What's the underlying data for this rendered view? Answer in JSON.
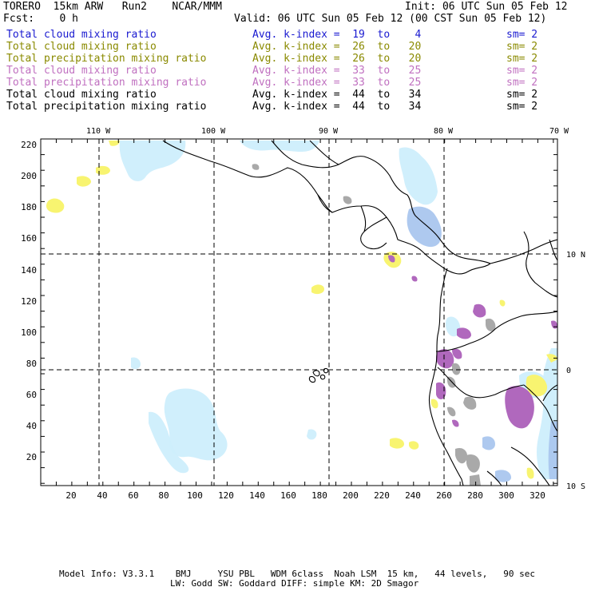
{
  "header": {
    "title": "TORERO  15km ARW   Run2    NCAR/MMM",
    "init": "Init: 06 UTC Sun 05 Feb 12",
    "fcst": "Fcst:    0 h",
    "valid": "Valid: 06 UTC Sun 05 Feb 12 (00 CST Sun 05 Feb 12)"
  },
  "legend": [
    {
      "field": "Total cloud mixing ratio",
      "kindex": "Avg. k-index =  19  to    4",
      "sm": "sm= 2",
      "color": "#1a1ad0"
    },
    {
      "field": "Total cloud mixing ratio",
      "kindex": "Avg. k-index =  26  to   20",
      "sm": "sm= 2",
      "color": "#8a8a00"
    },
    {
      "field": "Total precipitation mixing ratio",
      "kindex": "Avg. k-index =  26  to   20",
      "sm": "sm= 2",
      "color": "#8a8a00"
    },
    {
      "field": "Total cloud mixing ratio",
      "kindex": "Avg. k-index =  33  to   25",
      "sm": "sm= 2",
      "color": "#c070c0"
    },
    {
      "field": "Total precipitation mixing ratio",
      "kindex": "Avg. k-index =  33  to   25",
      "sm": "sm= 2",
      "color": "#c070c0"
    },
    {
      "field": "Total cloud mixing ratio",
      "kindex": "Avg. k-index =  44  to   34",
      "sm": "sm= 2",
      "color": "#000000"
    },
    {
      "field": "Total precipitation mixing ratio",
      "kindex": "Avg. k-index =  44  to   34",
      "sm": "sm= 2",
      "color": "#000000"
    }
  ],
  "map": {
    "lon_labels": [
      "110 W",
      "100 W",
      "90 W",
      "80 W",
      "70 W"
    ],
    "lat_labels": [
      "10 N",
      "0",
      "10 S"
    ],
    "y_ticks": [
      "220",
      "200",
      "180",
      "160",
      "140",
      "120",
      "100",
      "80",
      "60",
      "40",
      "20"
    ],
    "x_ticks": [
      "20",
      "40",
      "60",
      "80",
      "100",
      "120",
      "140",
      "160",
      "180",
      "200",
      "220",
      "240",
      "260",
      "280",
      "300",
      "320"
    ],
    "colors": {
      "light_blue": "#cdeefc",
      "blue": "#aac6ee",
      "yellow": "#f8f470",
      "purple": "#b068bd",
      "gray": "#a9a9a9",
      "coast": "#000000"
    }
  },
  "footer": {
    "line1": "Model Info: V3.3.1    BMJ     YSU PBL   WDM 6class  Noah LSM  15 km,   44 levels,   90 sec",
    "line2": "LW: Godd SW: Goddard DIFF: simple KM: 2D Smagor"
  }
}
